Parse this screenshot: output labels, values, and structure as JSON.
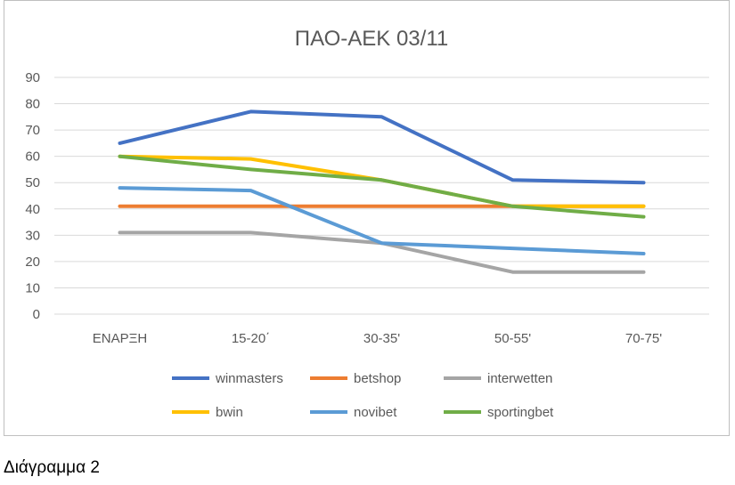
{
  "chart_data": {
    "type": "line",
    "title": "ΠΑΟ-ΑΕΚ 03/11",
    "xlabel": "",
    "ylabel": "",
    "categories": [
      "ΕΝΑΡΞΗ",
      "15-20΄",
      "30-35'",
      "50-55'",
      "70-75'"
    ],
    "ylim": [
      0,
      90
    ],
    "yticks": [
      0,
      10,
      20,
      30,
      40,
      50,
      60,
      70,
      80,
      90
    ],
    "grid": true,
    "legend": "bottom",
    "series": [
      {
        "name": "winmasters",
        "color": "#4472C4",
        "values": [
          65,
          77,
          75,
          51,
          50
        ]
      },
      {
        "name": "betshop",
        "color": "#ED7D31",
        "values": [
          41,
          41,
          41,
          41,
          41
        ]
      },
      {
        "name": "interwetten",
        "color": "#A5A5A5",
        "values": [
          31,
          31,
          27,
          16,
          16
        ]
      },
      {
        "name": "bwin",
        "color": "#FFC000",
        "values": [
          60,
          59,
          51,
          41,
          41
        ]
      },
      {
        "name": "novibet",
        "color": "#5B9BD5",
        "values": [
          48,
          47,
          27,
          25,
          23
        ]
      },
      {
        "name": "sportingbet",
        "color": "#70AD47",
        "values": [
          60,
          55,
          51,
          41,
          37
        ]
      }
    ]
  },
  "caption": "Διάγραμμα 2"
}
